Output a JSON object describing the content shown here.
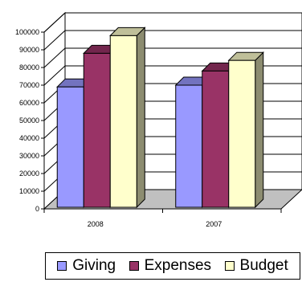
{
  "chart_data": {
    "type": "bar",
    "style": "3d-clustered-column",
    "title": "",
    "xlabel": "",
    "ylabel": "",
    "categories": [
      "2008",
      "2007"
    ],
    "series": [
      {
        "name": "Giving",
        "values": [
          69000,
          70000
        ]
      },
      {
        "name": "Expenses",
        "values": [
          88000,
          78000
        ]
      },
      {
        "name": "Budget",
        "values": [
          98000,
          84000
        ]
      }
    ],
    "ylim": [
      0,
      100000
    ],
    "yticks": [
      0,
      10000,
      20000,
      30000,
      40000,
      50000,
      60000,
      70000,
      80000,
      90000,
      100000
    ],
    "ytick_labels": [
      "0",
      "10000",
      "20000",
      "30000",
      "40000",
      "50000",
      "60000",
      "70000",
      "80000",
      "90000",
      "100000"
    ],
    "grid": true,
    "legend_position": "bottom",
    "colors": {
      "Giving": "#9999ff",
      "Expenses": "#993366",
      "Budget": "#ffffcc",
      "floor": "#c0c0c0"
    }
  }
}
